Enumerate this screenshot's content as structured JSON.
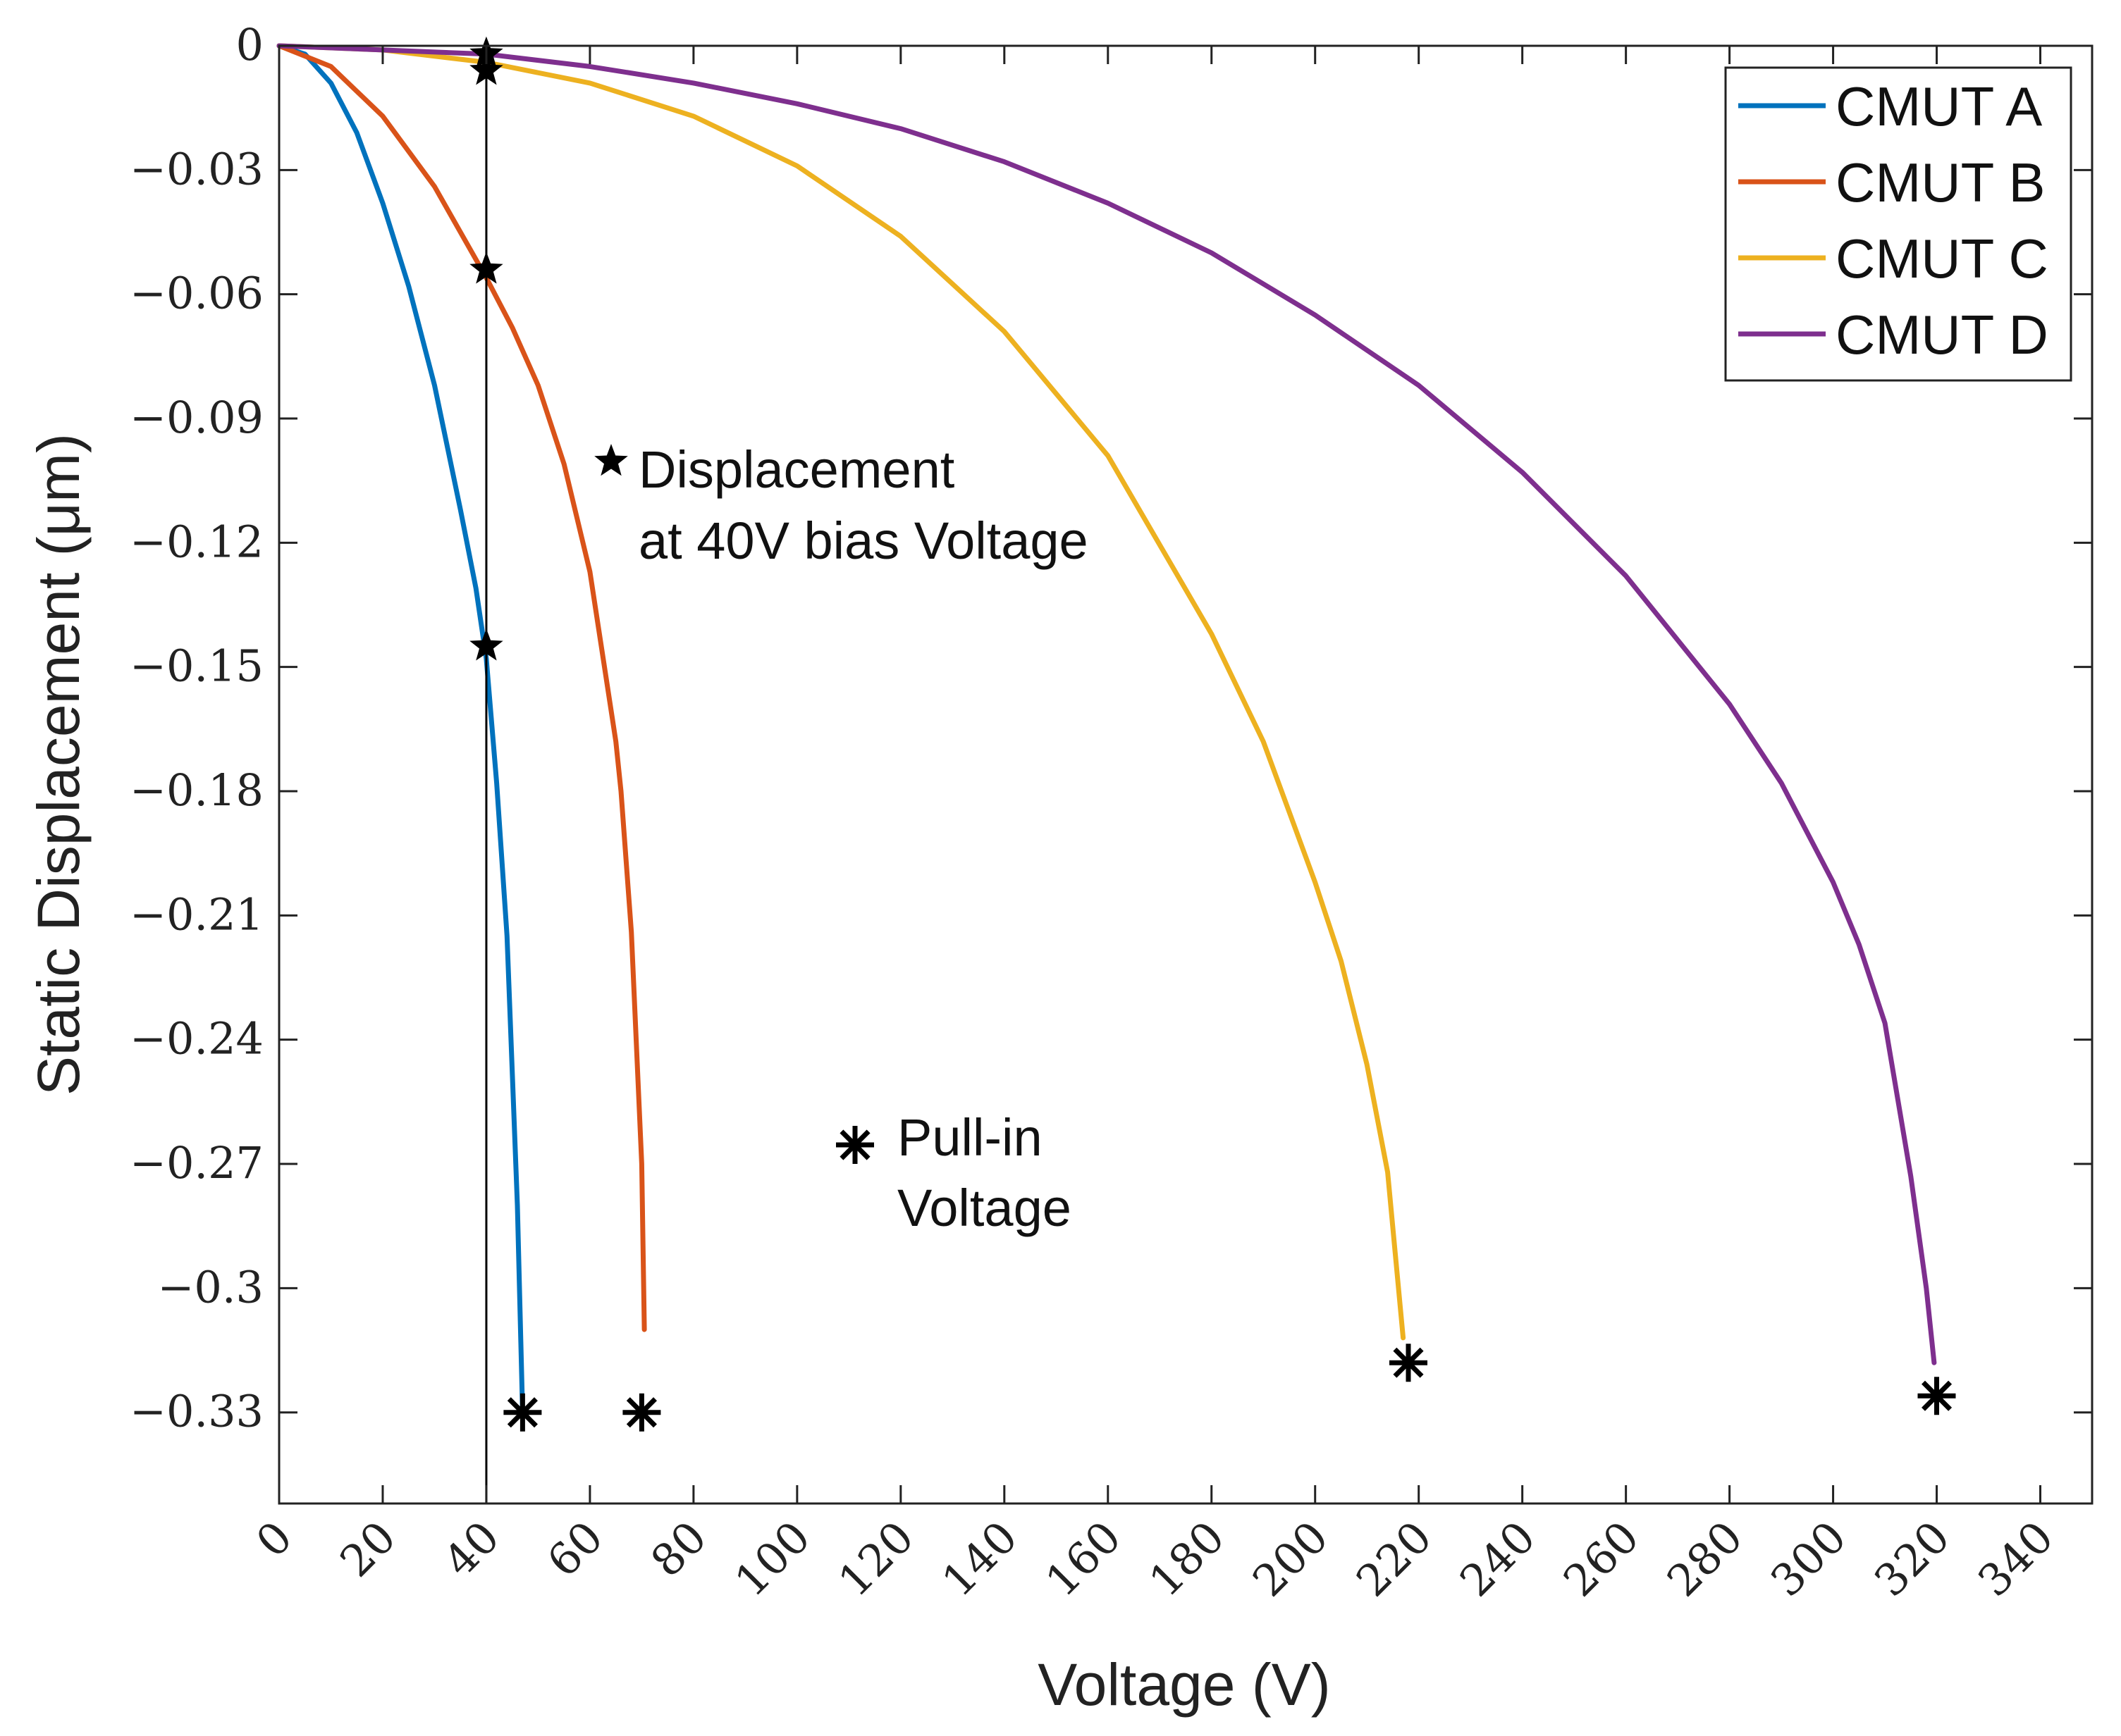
{
  "chart_data": {
    "type": "line",
    "title": "",
    "xlabel": "Voltage (V)",
    "ylabel": "Static Displacement (μm)",
    "xlim": [
      0,
      350
    ],
    "ylim": [
      -0.352,
      0
    ],
    "xticks": [
      0,
      20,
      40,
      60,
      80,
      100,
      120,
      140,
      160,
      180,
      200,
      220,
      240,
      260,
      280,
      300,
      320,
      340
    ],
    "xtick_labels": [
      "0",
      "20",
      "40",
      "60",
      "80",
      "100",
      "120",
      "140",
      "160",
      "180",
      "200",
      "220",
      "240",
      "260",
      "280",
      "300",
      "320",
      "340"
    ],
    "yticks": [
      0,
      -0.03,
      -0.06,
      -0.09,
      -0.12,
      -0.15,
      -0.18,
      -0.21,
      -0.24,
      -0.27,
      -0.3,
      -0.33
    ],
    "ytick_labels": [
      "0",
      "−0.03",
      "−0.06",
      "−0.09",
      "−0.12",
      "−0.15",
      "−0.18",
      "−0.21",
      "−0.24",
      "−0.27",
      "−0.3",
      "−0.33"
    ],
    "grid": false,
    "legend_position": "top-right",
    "reference_line": {
      "x": 40
    },
    "series": [
      {
        "name": "CMUT A",
        "color": "#0072BD",
        "x": [
          0,
          5,
          10,
          15,
          20,
          25,
          30,
          35,
          38,
          40,
          42,
          44,
          46,
          47
        ],
        "y": [
          0,
          -0.002,
          -0.009,
          -0.021,
          -0.038,
          -0.058,
          -0.082,
          -0.112,
          -0.131,
          -0.148,
          -0.178,
          -0.215,
          -0.28,
          -0.33
        ],
        "stars": [
          {
            "x": 40,
            "y": -0.145
          }
        ],
        "pull_in": {
          "x": 47,
          "y": -0.33
        }
      },
      {
        "name": "CMUT B",
        "color": "#D95319",
        "x": [
          0,
          10,
          20,
          30,
          40,
          45,
          50,
          55,
          60,
          65,
          66,
          68,
          70,
          70.5
        ],
        "y": [
          0,
          -0.005,
          -0.017,
          -0.034,
          -0.056,
          -0.068,
          -0.082,
          -0.101,
          -0.127,
          -0.168,
          -0.18,
          -0.214,
          -0.27,
          -0.31
        ],
        "stars": [
          {
            "x": 40,
            "y": -0.054
          }
        ],
        "pull_in": {
          "x": 70,
          "y": -0.33
        }
      },
      {
        "name": "CMUT C",
        "color": "#EDB120",
        "x": [
          0,
          20,
          40,
          60,
          80,
          100,
          120,
          140,
          160,
          180,
          190,
          200,
          205,
          210,
          214,
          217
        ],
        "y": [
          0,
          -0.001,
          -0.004,
          -0.009,
          -0.017,
          -0.029,
          -0.046,
          -0.069,
          -0.099,
          -0.142,
          -0.168,
          -0.202,
          -0.221,
          -0.246,
          -0.272,
          -0.312
        ],
        "stars": [
          {
            "x": 40,
            "y": -0.006
          }
        ],
        "pull_in": {
          "x": 218,
          "y": -0.318
        }
      },
      {
        "name": "CMUT D",
        "color": "#7E2F8E",
        "x": [
          0,
          40,
          60,
          80,
          100,
          120,
          140,
          160,
          180,
          200,
          220,
          240,
          260,
          280,
          290,
          300,
          305,
          310,
          315,
          318,
          319.5
        ],
        "y": [
          0,
          -0.002,
          -0.005,
          -0.009,
          -0.014,
          -0.02,
          -0.028,
          -0.038,
          -0.05,
          -0.065,
          -0.082,
          -0.103,
          -0.128,
          -0.159,
          -0.178,
          -0.202,
          -0.217,
          -0.236,
          -0.273,
          -0.3,
          -0.318
        ],
        "stars": [
          {
            "x": 40,
            "y": -0.002
          }
        ],
        "pull_in": {
          "x": 320,
          "y": -0.326
        }
      }
    ],
    "annotations": [
      {
        "symbol": "star",
        "lines": [
          "Displacement",
          "at 40V bias Voltage"
        ]
      },
      {
        "symbol": "asterisk",
        "lines": [
          "Pull-in",
          "Voltage"
        ]
      }
    ]
  }
}
